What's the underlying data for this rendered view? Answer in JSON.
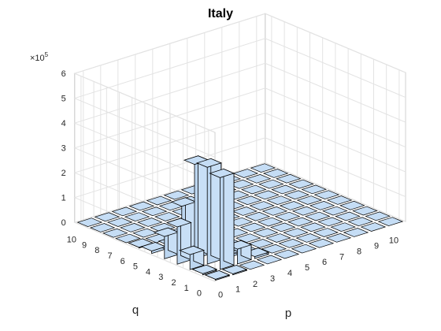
{
  "figure": {
    "background": "#ffffff"
  },
  "chart_data": {
    "type": "bar3",
    "title": "Italy",
    "xlabel": "p",
    "ylabel": "q",
    "zlabel": "",
    "x_ticks": [
      0,
      1,
      2,
      3,
      4,
      5,
      6,
      7,
      8,
      9,
      10
    ],
    "y_ticks": [
      0,
      1,
      2,
      3,
      4,
      5,
      6,
      7,
      8,
      9,
      10
    ],
    "z_ticks": [
      0,
      1,
      2,
      3,
      4,
      5,
      6
    ],
    "z_tick_labels": [
      "0",
      "1",
      "2",
      "3",
      "4",
      "5",
      "6"
    ],
    "z_exponent_base": "×10",
    "z_exponent_power": "5",
    "zlim": [
      0,
      600000
    ],
    "grid": true,
    "bar_color": "#c5ddf5",
    "edge_color": "#000000",
    "value_scale": 100000,
    "bars": [
      {
        "p": 0,
        "q": 0,
        "value": 4000
      },
      {
        "p": 0,
        "q": 1,
        "value": 5000
      },
      {
        "p": 0,
        "q": 2,
        "value": 60000
      },
      {
        "p": 0,
        "q": 3,
        "value": 150000
      },
      {
        "p": 0,
        "q": 4,
        "value": 90000
      },
      {
        "p": 0,
        "q": 5,
        "value": 10000
      },
      {
        "p": 0,
        "q": 6,
        "value": 3000
      },
      {
        "p": 1,
        "q": 0,
        "value": 4000
      },
      {
        "p": 1,
        "q": 1,
        "value": 370000
      },
      {
        "p": 1,
        "q": 2,
        "value": 390000
      },
      {
        "p": 1,
        "q": 3,
        "value": 380000
      },
      {
        "p": 1,
        "q": 4,
        "value": 190000
      },
      {
        "p": 1,
        "q": 5,
        "value": 10000
      },
      {
        "p": 2,
        "q": 1,
        "value": 60000
      },
      {
        "p": 2,
        "q": 2,
        "value": 10000
      },
      {
        "p": 2,
        "q": 3,
        "value": 6000
      },
      {
        "p": 3,
        "q": 1,
        "value": 8000
      }
    ]
  }
}
